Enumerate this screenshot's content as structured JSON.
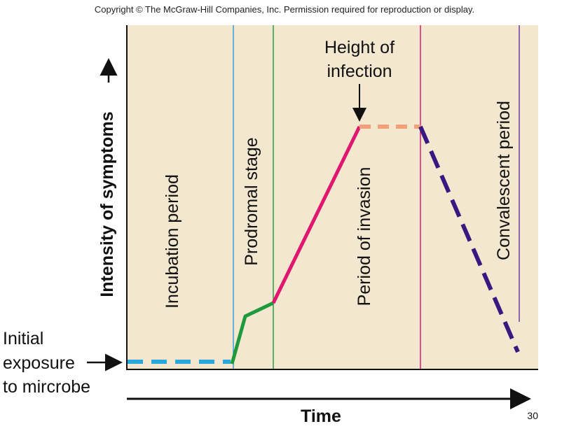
{
  "copyright": "Copyright © The McGraw-Hill Companies, Inc. Permission required for reproduction or display.",
  "page_number": "30",
  "axes": {
    "y_label": "Intensity of symptoms",
    "x_label": "Time"
  },
  "exposure_label": [
    "Initial",
    "exposure",
    "to mircrobe"
  ],
  "peak_label": [
    "Height of",
    "infection"
  ],
  "stages": {
    "incubation": "Incubation period",
    "prodromal": "Prodromal stage",
    "invasion": "Period of invasion",
    "convalescent": "Convalescent period"
  },
  "colors": {
    "background": "#f3e7cf",
    "incubation": "#29a8e0",
    "prodromal": "#1e9a3c",
    "invasion": "#e0166f",
    "peak": "#f0a07a",
    "convalescent": "#3b1780",
    "divider_blue": "#3aa0d8",
    "divider_green": "#2a9d48",
    "divider_magenta": "#d81b72",
    "divider_purple": "#6a3fa0"
  }
}
